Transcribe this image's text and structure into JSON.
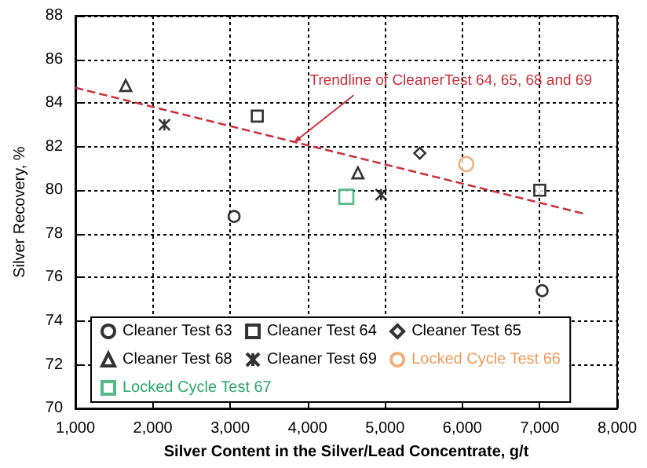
{
  "chart_data": {
    "type": "scatter",
    "xlabel": "Silver Content in the Silver/Lead Concentrate, g/t",
    "ylabel": "Silver Recovery, %",
    "xlim": [
      1000,
      8000
    ],
    "xticks": [
      {
        "value": 1000,
        "label": "1,000"
      },
      {
        "value": 2000,
        "label": "2,000"
      },
      {
        "value": 3000,
        "label": "3,000"
      },
      {
        "value": 4000,
        "label": "4,000"
      },
      {
        "value": 5000,
        "label": "5,000"
      },
      {
        "value": 6000,
        "label": "6,000"
      },
      {
        "value": 7000,
        "label": "7,000"
      },
      {
        "value": 8000,
        "label": "8,000"
      }
    ],
    "ylim": [
      70,
      88
    ],
    "yticks": [
      70,
      72,
      74,
      76,
      78,
      80,
      82,
      84,
      86,
      88
    ],
    "grid": true,
    "legend": "bottom",
    "annotations": [
      {
        "text": "Trendline of CleanerTest 64, 65, 68 and 69",
        "x": 3825,
        "y": 82.2
      }
    ],
    "series": [
      {
        "name": "Cleaner Test 63",
        "color": "#000000",
        "marker": "circle",
        "x": [
          3050,
          7030
        ],
        "values": [
          78.8,
          75.4
        ]
      },
      {
        "name": "Cleaner Test 64",
        "color": "#000000",
        "marker": "square",
        "x": [
          3350,
          7000
        ],
        "values": [
          83.4,
          80.0
        ]
      },
      {
        "name": "Cleaner Test 65",
        "color": "#000000",
        "marker": "diamond",
        "x": [
          5450
        ],
        "values": [
          81.7
        ]
      },
      {
        "name": "Cleaner Test 68",
        "color": "#000000",
        "marker": "triangle",
        "x": [
          1650,
          4650
        ],
        "values": [
          84.8,
          80.8
        ]
      },
      {
        "name": "Cleaner Test 69",
        "color": "#000000",
        "marker": "cross",
        "x": [
          2150,
          4950
        ],
        "values": [
          83.0,
          79.8
        ]
      },
      {
        "name": "Locked Cycle Test 66",
        "color": "#ee9a5a",
        "marker": "circle",
        "x": [
          6050
        ],
        "values": [
          81.2
        ]
      },
      {
        "name": "Locked Cycle Test 67",
        "color": "#2aa86a",
        "marker": "square",
        "x": [
          4500
        ],
        "values": [
          79.7
        ]
      },
      {
        "type": "line",
        "color": "#c8323c",
        "marker": "none",
        "line_style": "dashed",
        "x": [
          1000,
          7600
        ],
        "values": [
          84.7,
          78.9
        ]
      }
    ]
  }
}
